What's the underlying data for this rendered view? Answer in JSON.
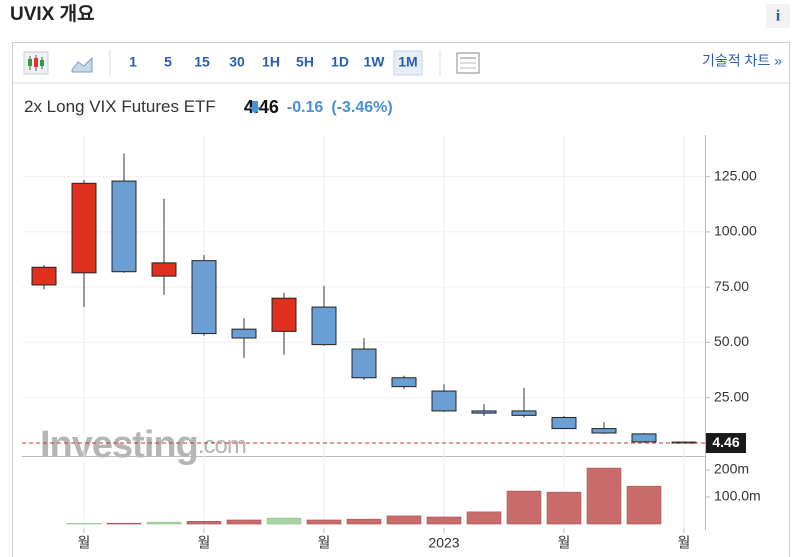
{
  "page_title": "UVIX 개요",
  "info_button": "i",
  "toolbar": {
    "intervals": [
      "1",
      "5",
      "15",
      "30",
      "1H",
      "5H",
      "1D",
      "1W",
      "1M"
    ],
    "selected": "1M",
    "advanced_link": "기술적 차트 »"
  },
  "instrument": {
    "name": "2x Long VIX Futures ETF",
    "change": -0.16,
    "change_pct_label": "(-3.46%)"
  },
  "watermark": {
    "brand": "Investing",
    "suffix": ".com"
  },
  "chart_data": {
    "type": "candlestick",
    "categories": [
      null,
      "월",
      null,
      null,
      "월",
      null,
      null,
      "월",
      null,
      null,
      "2023",
      null,
      null,
      "월",
      null,
      null,
      "월"
    ],
    "open": [
      76,
      81.5,
      123,
      80,
      87,
      56,
      55,
      66,
      47,
      34,
      28,
      19,
      19,
      16,
      11,
      8.6,
      4.9
    ],
    "high": [
      85,
      123.5,
      135.5,
      115,
      89.5,
      61,
      72.5,
      75.5,
      52,
      35,
      31,
      22,
      29.5,
      16.7,
      14,
      9,
      5
    ],
    "low": [
      74,
      66,
      81.5,
      71.5,
      53,
      43,
      44.5,
      48.5,
      33,
      29,
      18.5,
      16.7,
      16,
      11,
      8.6,
      4.5,
      4.3
    ],
    "close": [
      84,
      122,
      82,
      86,
      54,
      52,
      70,
      49,
      34,
      30,
      19,
      18,
      17,
      11,
      9,
      5,
      4.46
    ],
    "up_color": "#e0301e",
    "down_color": "#6a9fd4",
    "ylim": [
      -1.4,
      141.6
    ],
    "yticks": [
      {
        "value": 25,
        "label": "25.00"
      },
      {
        "value": 50,
        "label": "50.00"
      },
      {
        "value": 75,
        "label": "75.00"
      },
      {
        "value": 100,
        "label": "100.00"
      },
      {
        "value": 125,
        "label": "125.00"
      }
    ],
    "last_price": 4.46,
    "last_price_color": "#c0392b",
    "volume": [
      null,
      2000000,
      3000000,
      7000000,
      10000000,
      15000000,
      22000000,
      15000000,
      18000000,
      30000000,
      26000000,
      45000000,
      122000000,
      118000000,
      207000000,
      140000000,
      null
    ],
    "volume_up_color": "#a9d3a7",
    "volume_down_color": "#c96b6b",
    "vlim": [
      -11000000,
      248000000
    ],
    "vticks": [
      {
        "value": 100000000,
        "label": "100.0m"
      },
      {
        "value": 200000000,
        "label": "200m"
      }
    ]
  }
}
